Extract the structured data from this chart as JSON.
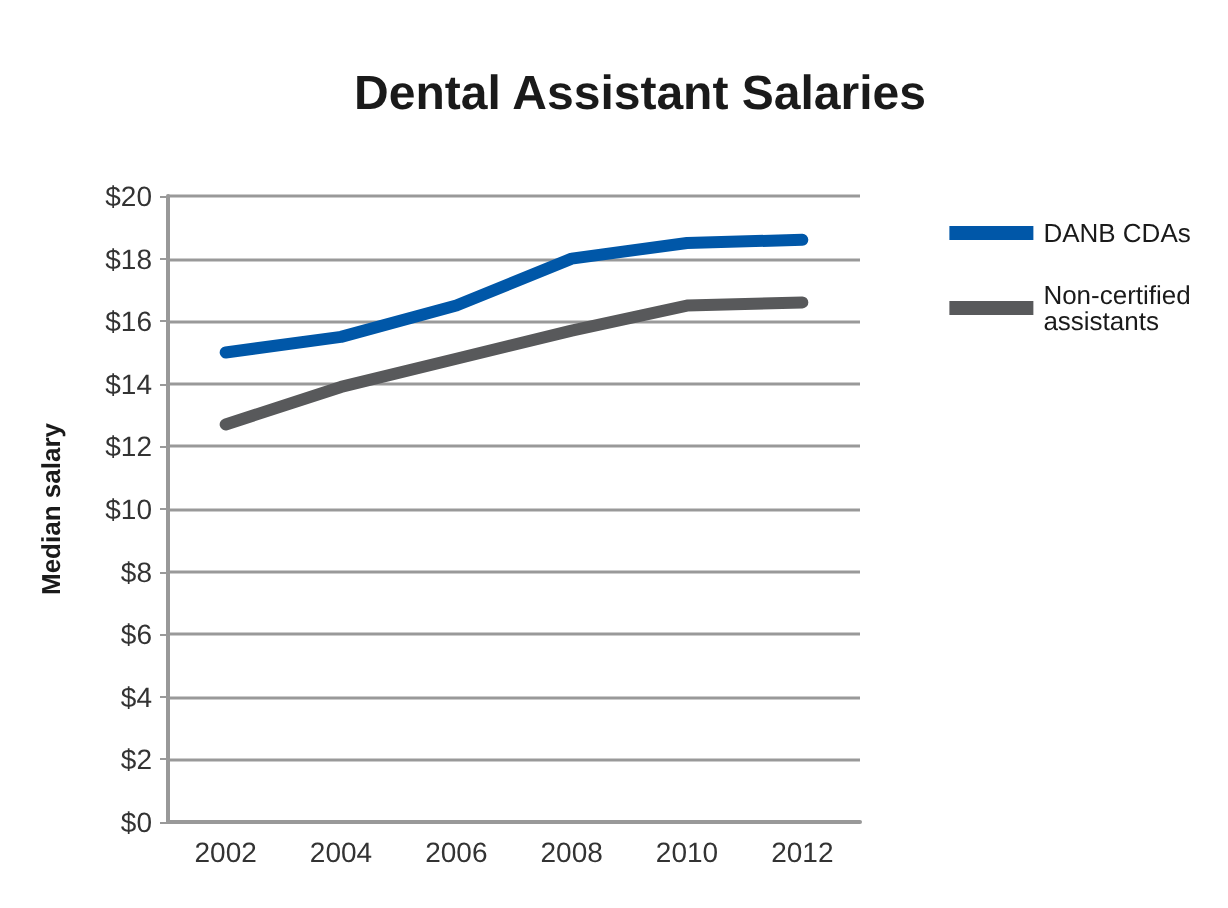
{
  "chart_data": {
    "type": "line",
    "title": "Dental Assistant Salaries",
    "ylabel": "Median salary",
    "categories": [
      "2002",
      "2004",
      "2006",
      "2008",
      "2010",
      "2012"
    ],
    "series": [
      {
        "name": "DANB CDAs",
        "color": "#0057a8",
        "values": [
          15.0,
          15.5,
          16.5,
          18.0,
          18.5,
          18.6
        ]
      },
      {
        "name": "Non-certified assistants",
        "color": "#58595b",
        "values": [
          12.7,
          13.9,
          14.8,
          15.7,
          16.5,
          16.6
        ]
      }
    ],
    "ylim": [
      0,
      20
    ],
    "yticks": [
      {
        "value": 0,
        "label": "$0"
      },
      {
        "value": 2,
        "label": "$2"
      },
      {
        "value": 4,
        "label": "$4"
      },
      {
        "value": 6,
        "label": "$6"
      },
      {
        "value": 8,
        "label": "$8"
      },
      {
        "value": 10,
        "label": "$10"
      },
      {
        "value": 12,
        "label": "$12"
      },
      {
        "value": 14,
        "label": "$14"
      },
      {
        "value": 16,
        "label": "$16"
      },
      {
        "value": 18,
        "label": "$18"
      },
      {
        "value": 20,
        "label": "$20"
      }
    ],
    "grid": "y",
    "legend": "right",
    "marker": "none",
    "line_style": "solid"
  }
}
